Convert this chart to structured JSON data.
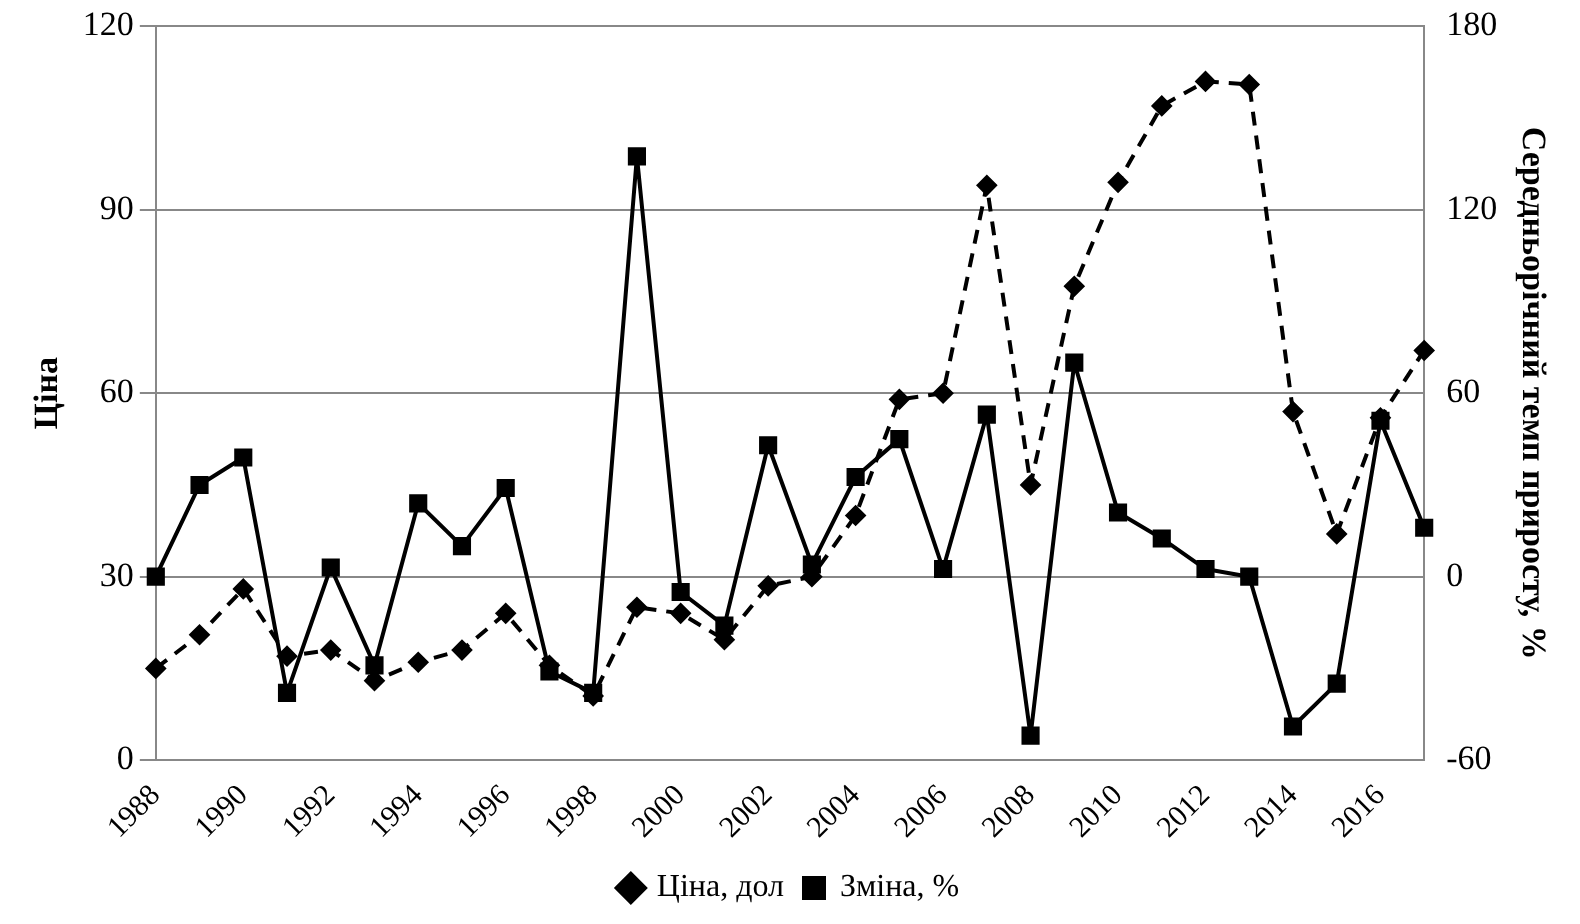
{
  "chart_data": {
    "type": "line",
    "ylabel": "Ціна",
    "y2label": "Середньорічний темп приросту, %",
    "categories": [
      "1988",
      null,
      "1990",
      null,
      "1992",
      null,
      "1994",
      null,
      "1996",
      null,
      "1998",
      null,
      "2000",
      null,
      "2002",
      null,
      "2004",
      null,
      "2006",
      null,
      "2008",
      null,
      "2010",
      null,
      "2012",
      null,
      "2014",
      null,
      "2016",
      null
    ],
    "series": [
      {
        "name": "Ціна, дол",
        "color": "#000000",
        "marker": "diamond",
        "line_style": "dashed",
        "values": [
          15,
          20.5,
          28,
          17,
          18,
          13,
          16,
          18,
          24,
          15.5,
          10.5,
          25,
          24,
          19.7,
          28.5,
          30,
          40,
          59,
          60,
          94,
          45,
          77.5,
          94.5,
          107,
          111,
          110.5,
          57,
          37,
          56,
          67
        ]
      },
      {
        "name": "Зміна, %",
        "color": "#000000",
        "marker": "square",
        "line_style": "solid",
        "axis": "y2",
        "values": [
          0,
          30,
          39,
          -38,
          3,
          -29,
          24,
          10,
          29,
          -31,
          -38,
          137.5,
          -5,
          -16,
          43,
          4,
          32.6,
          45,
          2.5,
          53,
          -52,
          70,
          21,
          12.5,
          2.5,
          0,
          -49,
          -35,
          51,
          16
        ]
      }
    ],
    "ylim": [
      0,
      120
    ],
    "yticks": [
      0,
      30,
      60,
      90,
      120
    ],
    "y2lim": [
      -60,
      180
    ],
    "y2ticks": [
      -60,
      0,
      60,
      120,
      180
    ],
    "grid": "y",
    "legend": "bottom"
  }
}
